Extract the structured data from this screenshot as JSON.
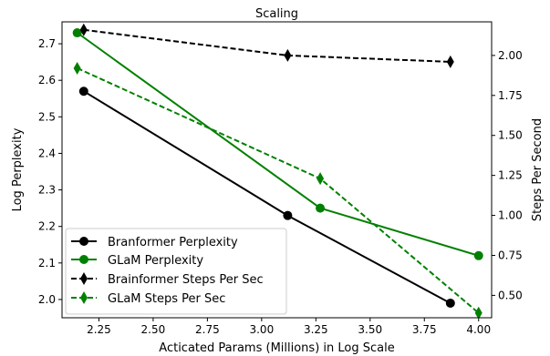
{
  "chart_data": {
    "type": "line",
    "title": "Scaling",
    "xlabel": "Acticated Params (Millions) in Log Scale",
    "ylabel_left": "Log Perplexity",
    "ylabel_right": "Steps Per Second",
    "xlim": [
      2.08,
      4.06
    ],
    "ylim_left": [
      1.95,
      2.76
    ],
    "ylim_right": [
      0.36,
      2.21
    ],
    "x_ticks": [
      2.25,
      2.5,
      2.75,
      3.0,
      3.25,
      3.5,
      3.75,
      4.0
    ],
    "x_tick_labels": [
      "2.25",
      "2.50",
      "2.75",
      "3.00",
      "3.25",
      "3.50",
      "3.75",
      "4.00"
    ],
    "y_left_ticks": [
      2.0,
      2.1,
      2.2,
      2.3,
      2.4,
      2.5,
      2.6,
      2.7
    ],
    "y_left_tick_labels": [
      "2.0",
      "2.1",
      "2.2",
      "2.3",
      "2.4",
      "2.5",
      "2.6",
      "2.7"
    ],
    "y_right_ticks": [
      0.5,
      0.75,
      1.0,
      1.25,
      1.5,
      1.75,
      2.0
    ],
    "y_right_tick_labels": [
      "0.50",
      "0.75",
      "1.00",
      "1.25",
      "1.50",
      "1.75",
      "2.00"
    ],
    "grid": false,
    "legend_position": "lower-left",
    "series": [
      {
        "name": "Branformer Perplexity",
        "axis": "left",
        "color": "#000000",
        "linestyle": "solid",
        "marker": "circle",
        "x": [
          2.18,
          3.12,
          3.87
        ],
        "y": [
          2.57,
          2.23,
          1.99
        ]
      },
      {
        "name": "GLaM Perplexity",
        "axis": "left",
        "color": "#008000",
        "linestyle": "solid",
        "marker": "circle",
        "x": [
          2.15,
          3.27,
          4.0
        ],
        "y": [
          2.73,
          2.25,
          2.12
        ]
      },
      {
        "name": "Brainformer Steps Per Sec",
        "axis": "right",
        "color": "#000000",
        "linestyle": "dashed",
        "marker": "diamond",
        "x": [
          2.18,
          3.12,
          3.87
        ],
        "y": [
          2.16,
          2.0,
          1.96
        ]
      },
      {
        "name": "GLaM Steps Per Sec",
        "axis": "right",
        "color": "#008000",
        "linestyle": "dashed",
        "marker": "diamond",
        "x": [
          2.15,
          3.27,
          4.0
        ],
        "y": [
          1.92,
          1.23,
          0.39
        ]
      }
    ]
  }
}
